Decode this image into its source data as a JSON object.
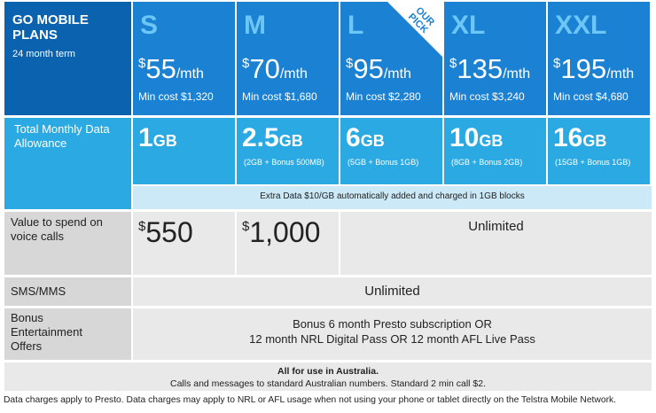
{
  "header": {
    "title": "GO MOBILE PLANS",
    "term": "24 month term"
  },
  "badge": "OUR PICK",
  "currency": "$",
  "per_month": "/mth",
  "data_unit": "GB",
  "plans": [
    {
      "name": "S",
      "price": "55",
      "min_cost": "Min cost $1,320",
      "data": "1",
      "voice": "550"
    },
    {
      "name": "M",
      "price": "70",
      "min_cost": "Min cost $1,680",
      "data": "2.5",
      "data_note": "(2GB + Bonus 500MB)",
      "voice": "1,000"
    },
    {
      "name": "L",
      "price": "95",
      "min_cost": "Min cost $2,280",
      "data": "6",
      "data_note": "(5GB + Bonus 1GB)"
    },
    {
      "name": "XL",
      "price": "135",
      "min_cost": "Min cost $3,240",
      "data": "10",
      "data_note": "(8GB + Bonus 2GB)"
    },
    {
      "name": "XXL",
      "price": "195",
      "min_cost": "Min cost $4,680",
      "data": "16",
      "data_note": "(15GB + Bonus 1GB)"
    }
  ],
  "rows": {
    "data_label": "Total Monthly Data Allowance",
    "extra_data": "Extra Data $10/GB automatically added and charged in 1GB blocks",
    "voice_label": "Value to spend on voice calls",
    "voice_unlimited": "Unlimited",
    "sms_label": "SMS/MMS",
    "sms_value": "Unlimited",
    "bonus_label": "Bonus Entertainment Offers",
    "bonus_lines": [
      "Bonus 6 month Presto subscription OR",
      "12 month NRL Digital Pass OR 12 month AFL Live Pass"
    ]
  },
  "footer": {
    "title": "All for use in Australia.",
    "text": "Calls and messages to standard Australian numbers. Standard 2 min call $2."
  },
  "footnote": "Data charges apply to Presto. Data charges may apply to NRL or AFL usage when not using your phone or tablet directly on the Telstra Mobile Network."
}
